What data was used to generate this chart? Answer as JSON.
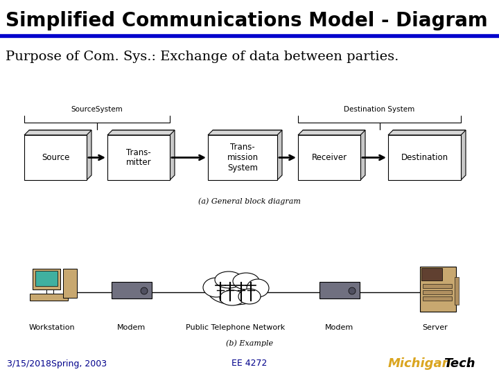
{
  "title": "Simplified Communications Model - Diagram",
  "title_fontsize": 20,
  "title_color": "#000000",
  "separator_color": "#0000CC",
  "separator_lw": 4,
  "subtitle": "Purpose of Com. Sys.: Exchange of data between parties.",
  "subtitle_fontsize": 14,
  "subtitle_color": "#000000",
  "footer_left": "3/15/2018Spring, 2003",
  "footer_center": "EE 4272",
  "footer_color": "#00008B",
  "footer_fontsize": 9,
  "background_color": "#ffffff",
  "diagram_note_a": "(a) General block diagram",
  "diagram_note_b": "(b) Example",
  "blocks_row1": [
    "Source",
    "Trans-\nmitter",
    "Trans-\nmission\nSystem",
    "Receiver",
    "Destination"
  ],
  "source_system_label": "SourceSystem",
  "dest_system_label": "Destination System",
  "row2_labels": [
    "Workstation",
    "Modem",
    "Public Telephone Network",
    "Modem",
    "Server"
  ],
  "michigan_gold": "#DAA520",
  "michigan_black": "#000000"
}
